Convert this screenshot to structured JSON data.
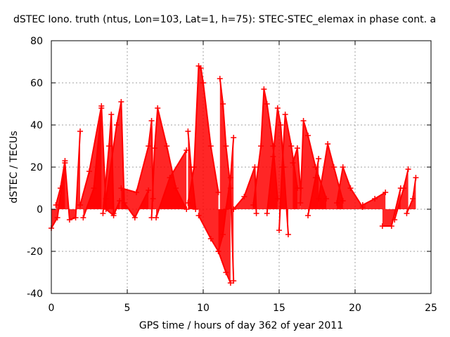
{
  "chart_data": {
    "type": "line",
    "title": "dSTEC Iono. truth (ntus, Lon=103, Lat=1, h=75): STEC-STEC_elemax in phase cont. a",
    "xlabel": "GPS time / hours of day 362 of year 2011",
    "ylabel": "dSTEC  / TECUs",
    "xlim": [
      0,
      25
    ],
    "ylim": [
      -40,
      80
    ],
    "xticks": [
      "0",
      "5",
      "10",
      "15",
      "20",
      "25"
    ],
    "yticks": [
      "-40",
      "-20",
      "0",
      "20",
      "40",
      "60",
      "80"
    ],
    "grid": true,
    "legend": "none",
    "color": "#ff0000",
    "marker": "plus",
    "series": [
      {
        "name": "",
        "arcs": [
          {
            "x": [
              0.0,
              0.4,
              0.9,
              1.2,
              1.6,
              1.9
            ],
            "y": [
              -9,
              -4,
              22,
              -5,
              -4,
              37
            ]
          },
          {
            "x": [
              0.3,
              0.6,
              0.9
            ],
            "y": [
              2,
              10,
              23
            ]
          },
          {
            "x": [
              1.9,
              2.5,
              3.3,
              3.6,
              4.1,
              4.5
            ],
            "y": [
              2,
              18,
              49,
              0,
              -3,
              4
            ]
          },
          {
            "x": [
              2.1,
              2.8,
              3.3
            ],
            "y": [
              -4,
              10,
              48
            ]
          },
          {
            "x": [
              3.4,
              3.8,
              3.95,
              4.1
            ],
            "y": [
              -2,
              30,
              45,
              -2
            ]
          },
          {
            "x": [
              3.6,
              4.3,
              4.6,
              4.8,
              5.5,
              6.4
            ],
            "y": [
              5,
              40,
              51,
              3,
              -4,
              9
            ]
          },
          {
            "x": [
              4.6,
              5.6,
              6.4,
              6.6,
              6.7
            ],
            "y": [
              10,
              8,
              30,
              42,
              5
            ]
          },
          {
            "x": [
              6.6,
              6.8,
              7.0,
              7.6,
              8.2,
              8.9
            ],
            "y": [
              -4,
              29,
              48,
              30,
              10,
              0
            ]
          },
          {
            "x": [
              6.9,
              7.8,
              8.9
            ],
            "y": [
              -4,
              15,
              28
            ]
          },
          {
            "x": [
              9.0,
              9.2,
              9.5
            ],
            "y": [
              37,
              20,
              0
            ]
          },
          {
            "x": [
              9.0,
              9.4,
              9.7,
              9.85,
              10.0,
              10.5,
              11.0
            ],
            "y": [
              3,
              20,
              68,
              67,
              60,
              30,
              8
            ]
          },
          {
            "x": [
              9.7,
              10.5,
              11.0,
              11.3,
              11.5,
              11.8,
              12.0
            ],
            "y": [
              -3,
              -14,
              -20,
              -12,
              0,
              15,
              34
            ]
          },
          {
            "x": [
              11.1,
              11.3,
              11.5,
              11.8,
              12.0
            ],
            "y": [
              62,
              50,
              30,
              10,
              -34
            ]
          },
          {
            "x": [
              11.0,
              11.5,
              11.8
            ],
            "y": [
              -20,
              -30,
              -35
            ]
          },
          {
            "x": [
              12.0,
              12.7,
              13.4,
              13.5
            ],
            "y": [
              0,
              6,
              20,
              -2
            ]
          },
          {
            "x": [
              13.3,
              13.8,
              14.0,
              14.2,
              14.6,
              14.9
            ],
            "y": [
              2,
              30,
              57,
              50,
              30,
              5
            ]
          },
          {
            "x": [
              14.2,
              14.6,
              14.9,
              15.1,
              15.3,
              15.6
            ],
            "y": [
              -2,
              25,
              48,
              40,
              20,
              -12
            ]
          },
          {
            "x": [
              15.0,
              15.2,
              15.4,
              15.8,
              16.2
            ],
            "y": [
              -10,
              20,
              45,
              30,
              10
            ]
          },
          {
            "x": [
              15.9,
              16.2,
              16.4
            ],
            "y": [
              22,
              29,
              10
            ]
          },
          {
            "x": [
              16.4,
              16.6,
              16.9,
              17.4,
              18.1
            ],
            "y": [
              3,
              42,
              35,
              20,
              5
            ]
          },
          {
            "x": [
              16.9,
              17.4,
              17.6
            ],
            "y": [
              -3,
              15,
              24
            ]
          },
          {
            "x": [
              17.6,
              18.2,
              18.6,
              19.2
            ],
            "y": [
              5,
              31,
              20,
              4
            ]
          },
          {
            "x": [
              18.8,
              19.2,
              19.7,
              20.5
            ],
            "y": [
              3,
              20,
              10,
              1
            ]
          },
          {
            "x": [
              20.5,
              21.3,
              22.0
            ],
            "y": [
              2,
              5,
              8
            ]
          },
          {
            "x": [
              21.8,
              22.4,
              23.0
            ],
            "y": [
              -8,
              -8,
              10
            ]
          },
          {
            "x": [
              22.6,
              23.2,
              23.5
            ],
            "y": [
              -5,
              10,
              19
            ]
          },
          {
            "x": [
              23.4,
              23.8,
              24.0
            ],
            "y": [
              -2,
              5,
              15
            ]
          }
        ]
      }
    ]
  }
}
